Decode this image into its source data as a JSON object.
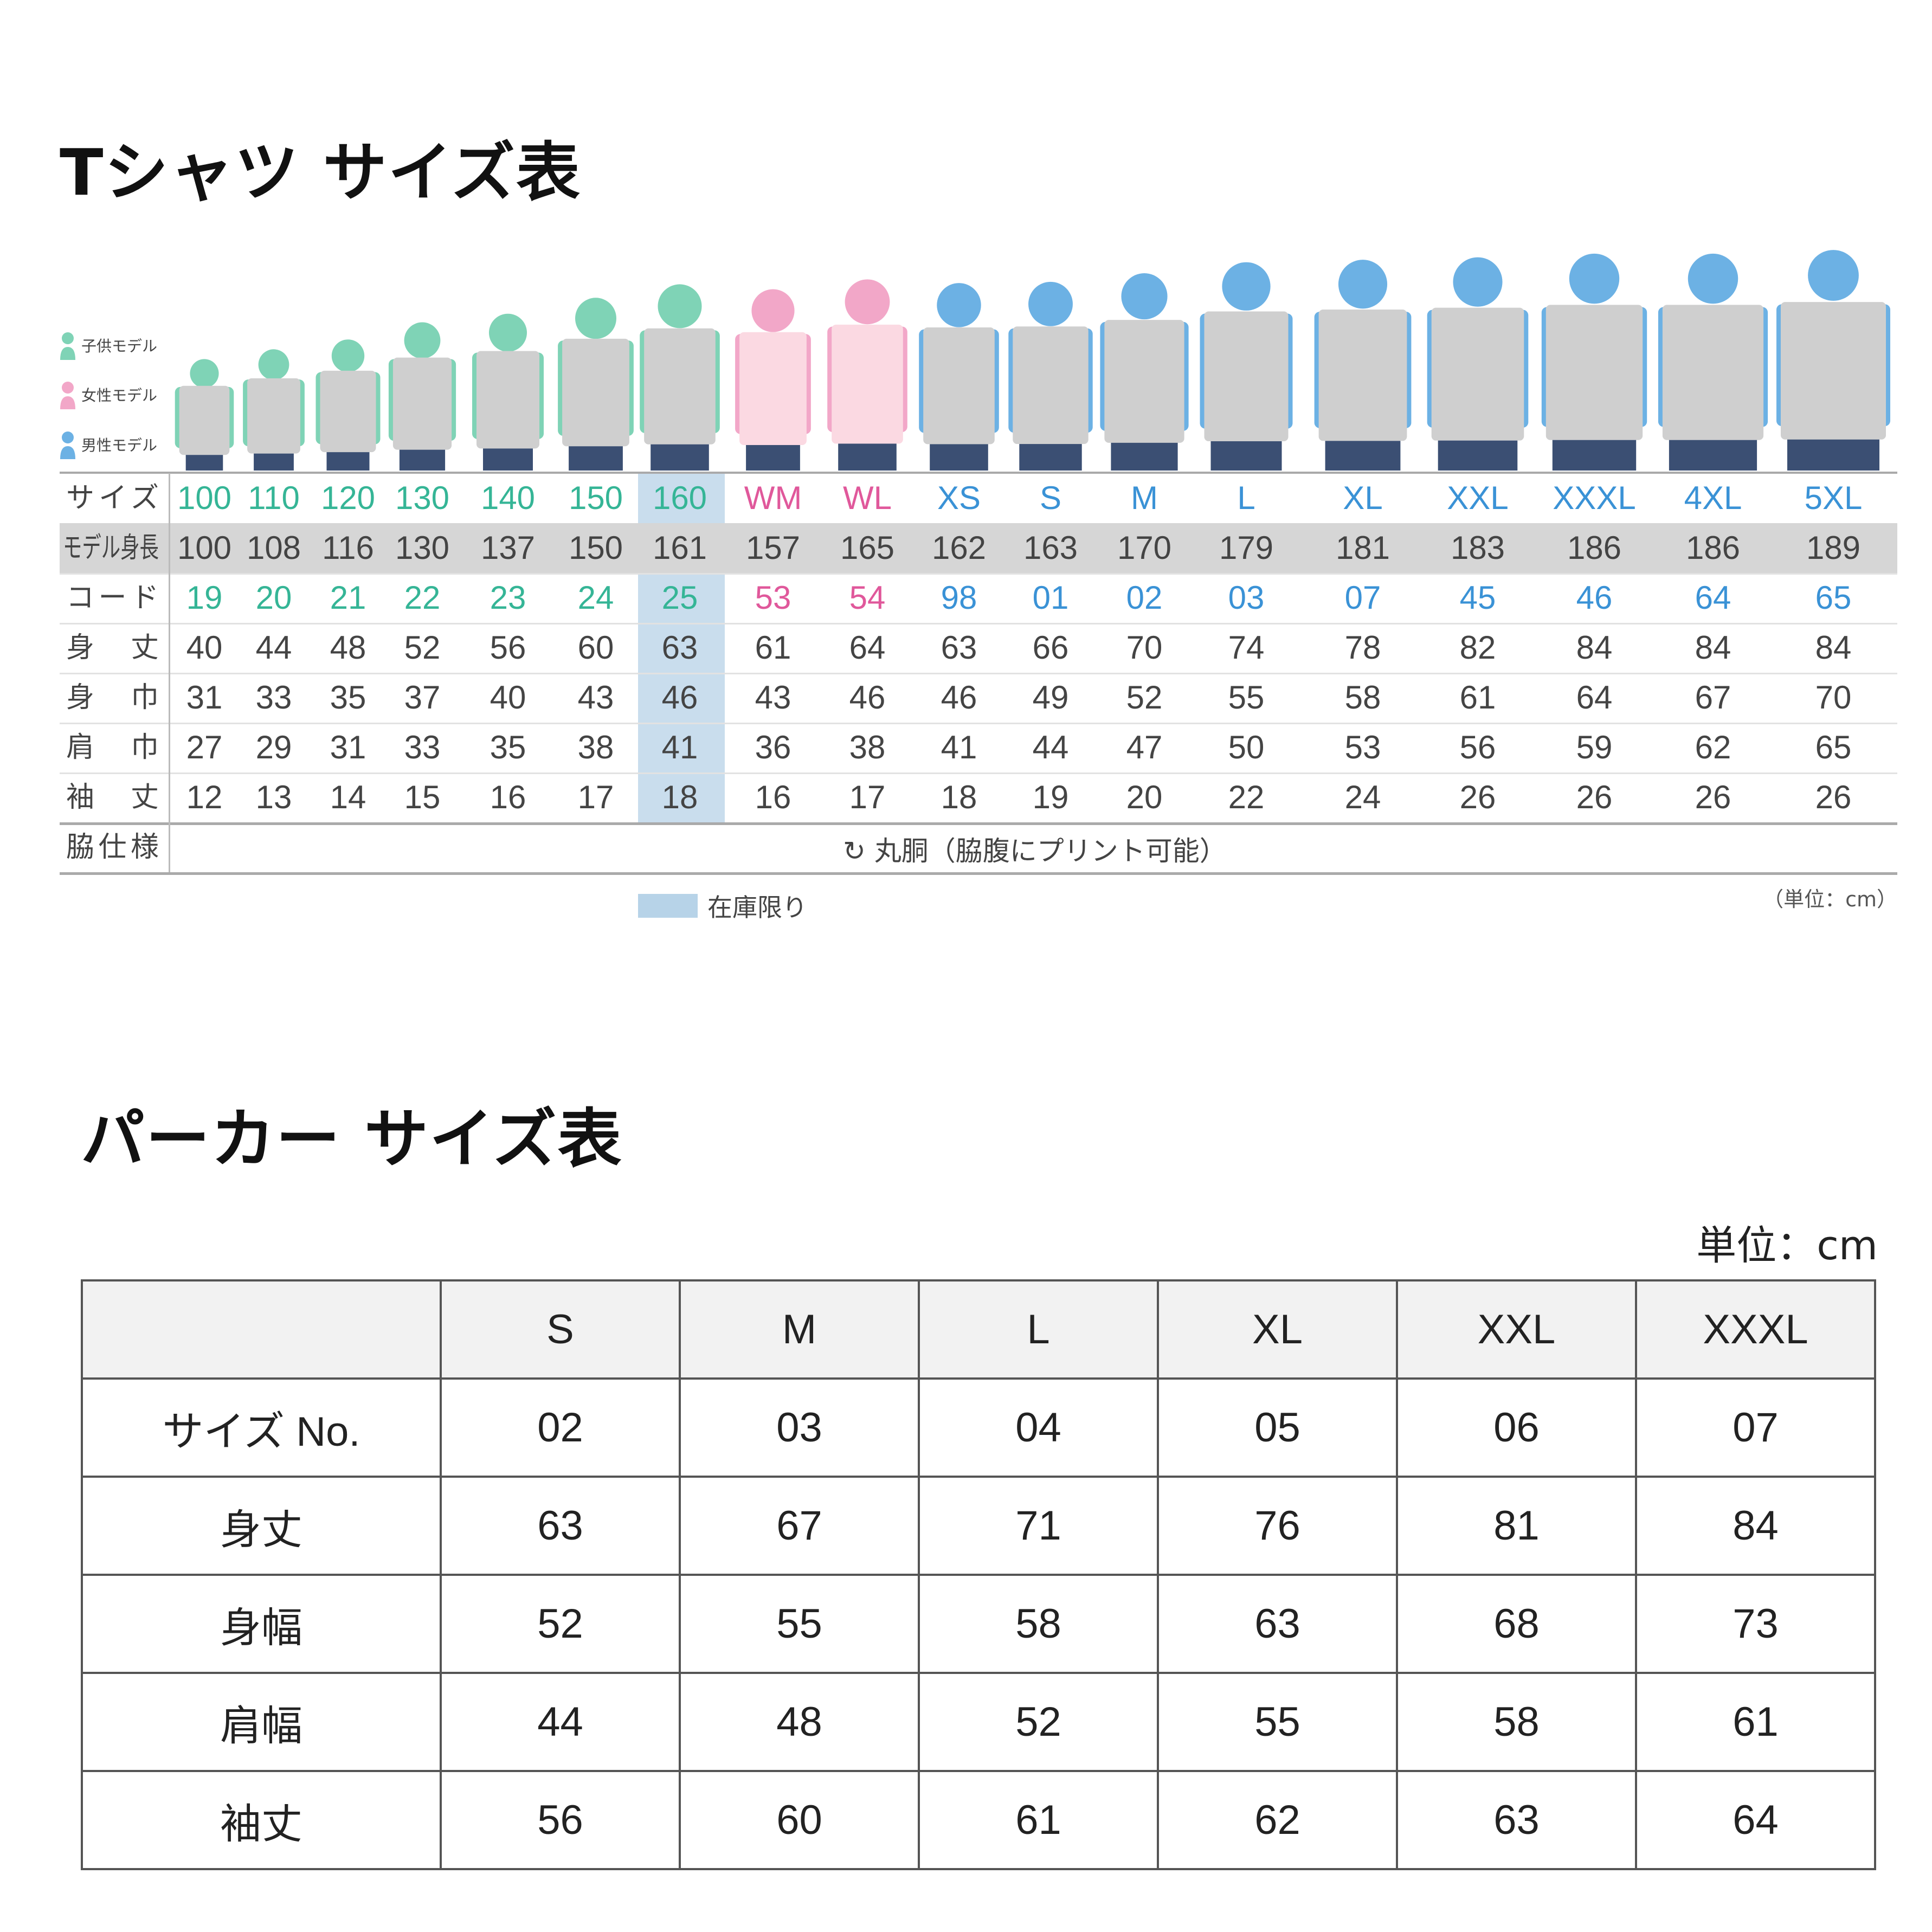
{
  "tshirt": {
    "title": "Tシャツ サイズ表",
    "legend": [
      {
        "label": "子供モデル",
        "color": "#7fd3b6"
      },
      {
        "label": "女性モデル",
        "color": "#f2a7c8"
      },
      {
        "label": "男性モデル",
        "color": "#6cb1e4"
      }
    ],
    "row_labels": [
      "サイズ",
      "モデル身長",
      "コード",
      "身　丈",
      "身　巾",
      "肩　巾",
      "袖　丈",
      "脇仕様"
    ],
    "columns": [
      {
        "size": "100",
        "height": "100",
        "code": "19",
        "length": "40",
        "body_width": "31",
        "shoulder": "27",
        "sleeve": "12",
        "group": "child"
      },
      {
        "size": "110",
        "height": "108",
        "code": "20",
        "length": "44",
        "body_width": "33",
        "shoulder": "29",
        "sleeve": "13",
        "group": "child"
      },
      {
        "size": "120",
        "height": "116",
        "code": "21",
        "length": "48",
        "body_width": "35",
        "shoulder": "31",
        "sleeve": "14",
        "group": "child"
      },
      {
        "size": "130",
        "height": "130",
        "code": "22",
        "length": "52",
        "body_width": "37",
        "shoulder": "33",
        "sleeve": "15",
        "group": "child"
      },
      {
        "size": "140",
        "height": "137",
        "code": "23",
        "length": "56",
        "body_width": "40",
        "shoulder": "35",
        "sleeve": "16",
        "group": "child"
      },
      {
        "size": "150",
        "height": "150",
        "code": "24",
        "length": "60",
        "body_width": "43",
        "shoulder": "38",
        "sleeve": "17",
        "group": "child"
      },
      {
        "size": "160",
        "height": "161",
        "code": "25",
        "length": "63",
        "body_width": "46",
        "shoulder": "41",
        "sleeve": "18",
        "group": "child",
        "limited_stock": true
      },
      {
        "size": "WM",
        "height": "157",
        "code": "53",
        "length": "61",
        "body_width": "43",
        "shoulder": "36",
        "sleeve": "16",
        "group": "female"
      },
      {
        "size": "WL",
        "height": "165",
        "code": "54",
        "length": "64",
        "body_width": "46",
        "shoulder": "38",
        "sleeve": "17",
        "group": "female"
      },
      {
        "size": "XS",
        "height": "162",
        "code": "98",
        "length": "63",
        "body_width": "46",
        "shoulder": "41",
        "sleeve": "18",
        "group": "male"
      },
      {
        "size": "S",
        "height": "163",
        "code": "01",
        "length": "66",
        "body_width": "49",
        "shoulder": "44",
        "sleeve": "19",
        "group": "male"
      },
      {
        "size": "M",
        "height": "170",
        "code": "02",
        "length": "70",
        "body_width": "52",
        "shoulder": "47",
        "sleeve": "20",
        "group": "male"
      },
      {
        "size": "L",
        "height": "179",
        "code": "03",
        "length": "74",
        "body_width": "55",
        "shoulder": "50",
        "sleeve": "22",
        "group": "male"
      },
      {
        "size": "XL",
        "height": "181",
        "code": "07",
        "length": "78",
        "body_width": "58",
        "shoulder": "53",
        "sleeve": "24",
        "group": "male"
      },
      {
        "size": "XXL",
        "height": "183",
        "code": "45",
        "length": "82",
        "body_width": "61",
        "shoulder": "56",
        "sleeve": "26",
        "group": "male"
      },
      {
        "size": "XXXL",
        "height": "186",
        "code": "46",
        "length": "84",
        "body_width": "64",
        "shoulder": "59",
        "sleeve": "26",
        "group": "male"
      },
      {
        "size": "4XL",
        "height": "186",
        "code": "64",
        "length": "84",
        "body_width": "67",
        "shoulder": "62",
        "sleeve": "26",
        "group": "male"
      },
      {
        "size": "5XL",
        "height": "189",
        "code": "65",
        "length": "84",
        "body_width": "70",
        "shoulder": "65",
        "sleeve": "26",
        "group": "male"
      }
    ],
    "group_text_colors": {
      "child": "#35b596",
      "female": "#e0589b",
      "male": "#3a92d6"
    },
    "side_spec": "丸胴（脇腹にプリント可能）",
    "side_spec_icon": "rotate-arrows-icon",
    "stock_legend": "在庫限り",
    "stock_color": "#b7d3e8",
    "unit": "（単位：cm）"
  },
  "hoodie": {
    "title": "パーカー サイズ表",
    "unit": "単位：cm",
    "sizes": [
      "S",
      "M",
      "L",
      "XL",
      "XXL",
      "XXXL"
    ],
    "rows": [
      {
        "label": "サイズ No.",
        "values": [
          "02",
          "03",
          "04",
          "05",
          "06",
          "07"
        ]
      },
      {
        "label": "身丈",
        "values": [
          "63",
          "67",
          "71",
          "76",
          "81",
          "84"
        ]
      },
      {
        "label": "身幅",
        "values": [
          "52",
          "55",
          "58",
          "63",
          "68",
          "73"
        ]
      },
      {
        "label": "肩幅",
        "values": [
          "44",
          "48",
          "52",
          "55",
          "58",
          "61"
        ]
      },
      {
        "label": "袖丈",
        "values": [
          "56",
          "60",
          "61",
          "62",
          "63",
          "64"
        ]
      }
    ]
  }
}
